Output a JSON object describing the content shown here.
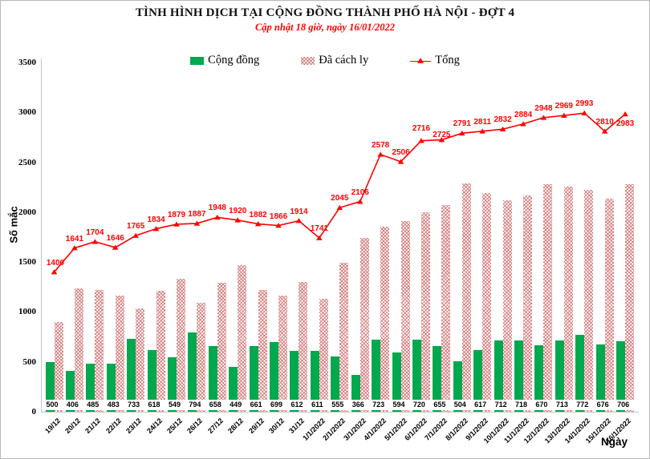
{
  "chart_data": {
    "type": "bar",
    "title": "TÌNH HÌNH DỊCH TẠI CỘNG ĐỒNG THÀNH PHỐ HÀ NỘI - ĐỢT 4",
    "subtitle": "Cập nhật 18 giờ, ngày 16/01/2022",
    "xlabel": "Ngày",
    "ylabel": "Số mắc",
    "ylim": [
      0,
      3500
    ],
    "ytick_step": 500,
    "grid": false,
    "legend_position": "top",
    "colors": {
      "community": "#00a84e",
      "quarantine_hatch": "#d16e6e",
      "total_line": "#ff0000"
    },
    "categories": [
      "19/12",
      "20/12",
      "21/12",
      "22/12",
      "23/12",
      "24/12",
      "25/12",
      "26/12",
      "27/12",
      "28/12",
      "29/12",
      "30/12",
      "31/12",
      "1/1/2022",
      "2/1/2022",
      "3/1/2022",
      "4/1/2022",
      "5/1/2022",
      "6/1/2022",
      "7/1/2022",
      "8/1/2022",
      "9/1/2022",
      "10/1/2022",
      "11/1/2022",
      "12/1/2022",
      "13/1/2022",
      "14/1/2022",
      "15/1/2022",
      "16/1/2022"
    ],
    "series": [
      {
        "name": "Cộng đồng",
        "type": "bar",
        "values": [
          500,
          406,
          485,
          483,
          733,
          618,
          549,
          794,
          658,
          449,
          661,
          699,
          612,
          611,
          555,
          366,
          723,
          594,
          720,
          655,
          504,
          617,
          712,
          718,
          670,
          713,
          772,
          676,
          706
        ]
      },
      {
        "name": "Đã cách ly",
        "type": "bar",
        "values": [
          900,
          1235,
          1219,
          1163,
          1032,
          1216,
          1330,
          1093,
          1290,
          1471,
          1221,
          1167,
          1302,
          1130,
          1490,
          1740,
          1855,
          1912,
          1996,
          2070,
          2287,
          2194,
          2120,
          2166,
          2278,
          2256,
          2221,
          2134,
          2277
        ]
      },
      {
        "name": "Tổng",
        "type": "line",
        "values": [
          1400,
          1641,
          1704,
          1646,
          1765,
          1834,
          1879,
          1887,
          1948,
          1920,
          1882,
          1866,
          1914,
          1741,
          2045,
          2106,
          2578,
          2506,
          2716,
          2725,
          2791,
          2811,
          2832,
          2884,
          2948,
          2969,
          2993,
          2810,
          2983
        ]
      }
    ]
  }
}
